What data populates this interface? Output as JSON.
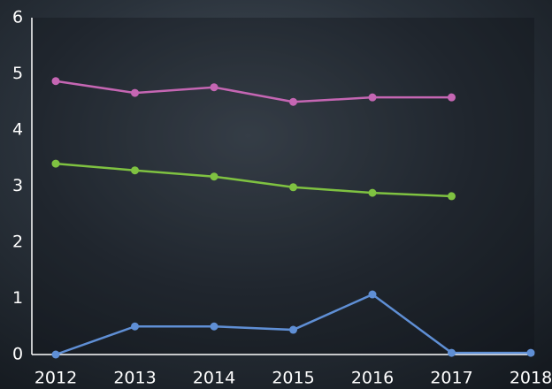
{
  "chart_data": {
    "type": "line",
    "x": [
      2012,
      2013,
      2014,
      2015,
      2016,
      2017,
      2018
    ],
    "xlim": [
      2012,
      2018
    ],
    "xticks": [
      2012,
      2013,
      2014,
      2015,
      2016,
      2017,
      2018
    ],
    "ylim": [
      0,
      6
    ],
    "yticks": [
      0,
      1,
      2,
      3,
      4,
      5,
      6
    ],
    "series": [
      {
        "color": "#c566b3",
        "values": [
          4.87,
          4.66,
          4.76,
          4.5,
          4.58,
          4.58,
          null
        ]
      },
      {
        "color": "#7fc241",
        "values": [
          3.4,
          3.28,
          3.17,
          2.98,
          2.88,
          2.82,
          null
        ]
      },
      {
        "color": "#5f8fd5",
        "values": [
          0,
          0.5,
          0.5,
          0.44,
          1.07,
          0.03,
          0.03
        ]
      }
    ]
  }
}
